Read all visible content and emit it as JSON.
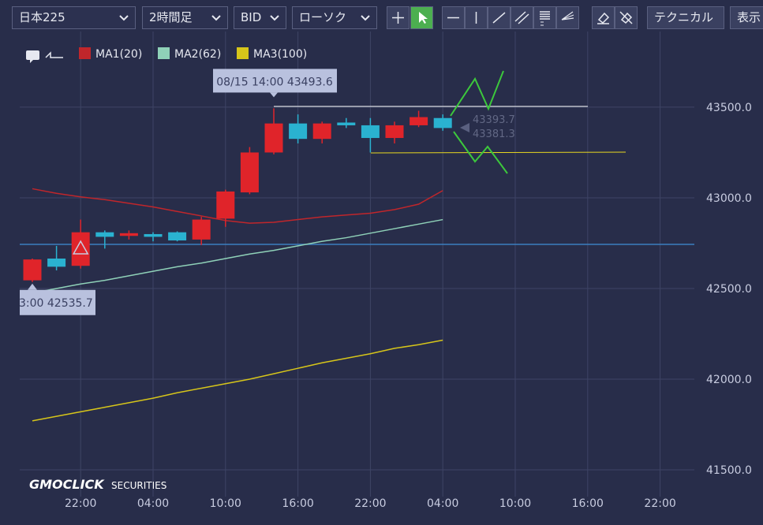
{
  "toolbar": {
    "symbol": "日本225",
    "timeframe": "2時間足",
    "price_type": "BID",
    "chart_style": "ローソク",
    "technical": "テクニカル",
    "display": "表示"
  },
  "watermark": {
    "brand": "GMOCLICK",
    "suffix": "SECURITIES"
  },
  "chart_data": {
    "type": "candlestick",
    "categories": [
      null,
      null,
      "22:00",
      null,
      null,
      "04:00",
      null,
      null,
      "10:00",
      null,
      null,
      "16:00",
      null,
      null,
      "22:00",
      null,
      null,
      "04:00",
      null,
      null,
      "10:00",
      null,
      null,
      "16:00",
      null,
      null,
      "22:00",
      null
    ],
    "open": [
      42545,
      42665,
      42625,
      42810,
      42790,
      42800,
      42810,
      42770,
      42885,
      43030,
      43250,
      43410,
      43325,
      43415,
      43400,
      43330,
      43400,
      43440,
      null,
      null,
      null,
      null,
      null,
      null,
      null,
      null,
      null,
      null
    ],
    "high": [
      42665,
      42735,
      42880,
      42820,
      42820,
      42810,
      42815,
      42895,
      43045,
      43280,
      43493.6,
      43460,
      43420,
      43440,
      43440,
      43420,
      43480,
      43460,
      null,
      null,
      null,
      null,
      null,
      null,
      null,
      null,
      null,
      null
    ],
    "low": [
      42535.7,
      42600,
      42610,
      42720,
      42770,
      42760,
      42760,
      42740,
      42840,
      43020,
      43240,
      43300,
      43300,
      43385,
      43250,
      43300,
      43390,
      43370,
      null,
      null,
      null,
      null,
      null,
      null,
      null,
      null,
      null,
      null
    ],
    "close": [
      42660,
      42620,
      42810,
      42785,
      42805,
      42785,
      42765,
      42880,
      43035,
      43250,
      43410,
      43325,
      43410,
      43400,
      43330,
      43400,
      43445,
      43385,
      null,
      null,
      null,
      null,
      null,
      null,
      null,
      null,
      null,
      null
    ],
    "up_color": "#e0242a",
    "down_color": "#2ab2d0",
    "series": [
      {
        "name": "MA1(20)",
        "color": "#c0262b",
        "values": [
          43050,
          43025,
          43005,
          42990,
          42970,
          42950,
          42925,
          42900,
          42875,
          42860,
          42865,
          42880,
          42895,
          42905,
          42915,
          42935,
          42965,
          43040,
          null,
          null,
          null,
          null,
          null,
          null,
          null,
          null,
          null,
          null
        ]
      },
      {
        "name": "MA2(62)",
        "color": "#8fd1b8",
        "values": [
          42475,
          42500,
          42525,
          42545,
          42570,
          42595,
          42620,
          42640,
          42665,
          42690,
          42710,
          42735,
          42760,
          42780,
          42805,
          42830,
          42855,
          42880,
          null,
          null,
          null,
          null,
          null,
          null,
          null,
          null,
          null,
          null
        ]
      },
      {
        "name": "MA3(100)",
        "color": "#d6c51a",
        "values": [
          41770,
          41795,
          41820,
          41845,
          41870,
          41895,
          41925,
          41950,
          41975,
          42000,
          42030,
          42060,
          42090,
          42115,
          42140,
          42170,
          42190,
          42215,
          null,
          null,
          null,
          null,
          null,
          null,
          null,
          null,
          null,
          null
        ]
      }
    ],
    "annotations": [
      "08/15 14:00 43493.6",
      "3:00 42535.7",
      "43393.7",
      "43381.3"
    ],
    "ylim": [
      41374,
      43917
    ],
    "yticks": [
      {
        "value": 41500,
        "label": "41500.0"
      },
      {
        "value": 42000,
        "label": "42000.0"
      },
      {
        "value": 42500,
        "label": "42500.0"
      },
      {
        "value": 43000,
        "label": "43000.0"
      },
      {
        "value": 43500,
        "label": "43500.0"
      }
    ],
    "grid": true
  }
}
